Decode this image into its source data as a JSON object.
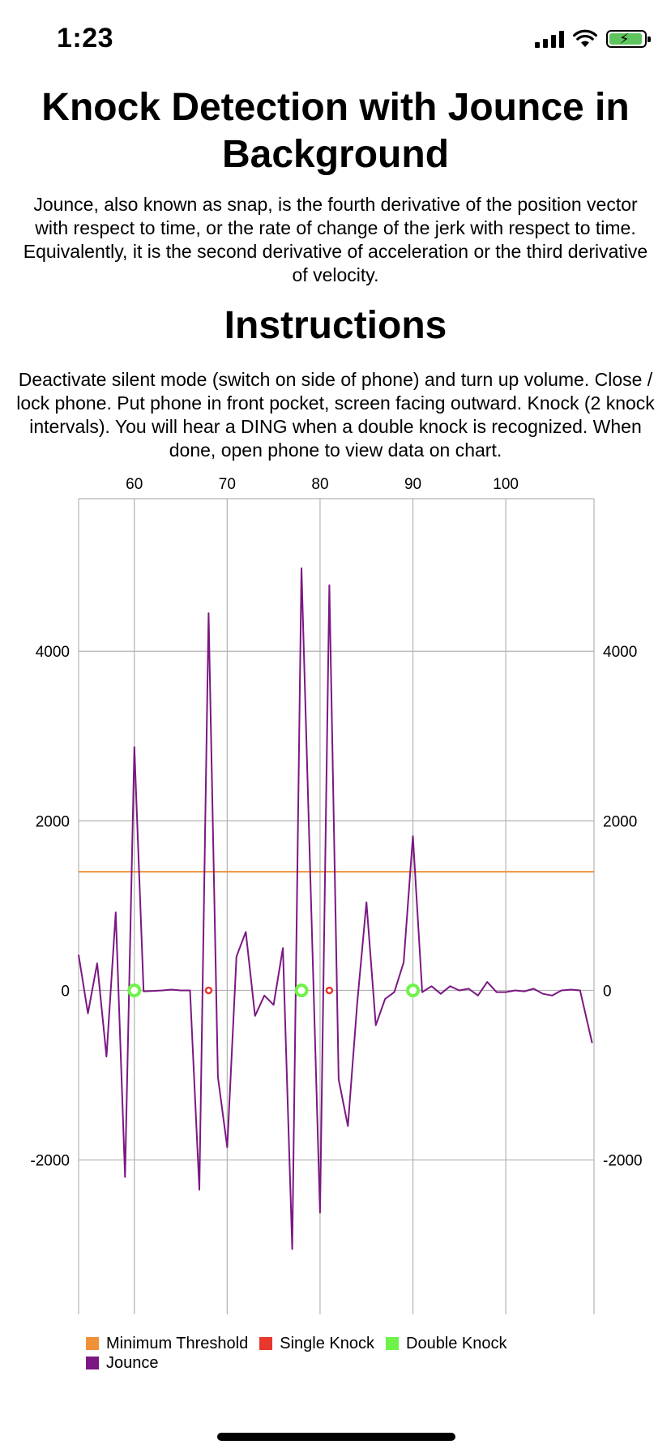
{
  "status_bar": {
    "time": "1:23",
    "icons": [
      "cellular-signal-icon",
      "wifi-icon",
      "battery-charging-icon"
    ],
    "battery_color": "#5ec45e"
  },
  "title": "Knock Detection with Jounce in Background",
  "description": "Jounce, also known as snap, is the fourth derivative of the position vector with respect to time, or the rate of change of the jerk with respect to time. Equivalently, it is the second derivative of acceleration or the third derivative of velocity.",
  "instructions": {
    "heading": "Instructions",
    "text": "Deactivate silent mode (switch on side of phone) and turn up volume. Close / lock phone. Put phone in front pocket, screen facing outward. Knock (2 knock intervals). You will hear a DING when a double knock is recognized. When done, open phone to view data on chart."
  },
  "chart_data": {
    "type": "line",
    "xlim": [
      54,
      109.5
    ],
    "ylim": [
      -3820,
      5800
    ],
    "x_ticks": [
      60,
      70,
      80,
      90,
      100
    ],
    "y_ticks": [
      -2000,
      0,
      2000,
      4000
    ],
    "grid": true,
    "legend_position": "bottom",
    "threshold": {
      "name": "Minimum Threshold",
      "value": 1400,
      "color": "#f0913a"
    },
    "series": [
      {
        "name": "Jounce",
        "color": "#7b1883",
        "points": [
          [
            54,
            420
          ],
          [
            55,
            -270
          ],
          [
            56,
            320
          ],
          [
            57,
            -780
          ],
          [
            58,
            920
          ],
          [
            59,
            -2200
          ],
          [
            60,
            2870
          ],
          [
            61,
            -10
          ],
          [
            62,
            -5
          ],
          [
            63,
            0
          ],
          [
            64,
            10
          ],
          [
            65,
            0
          ],
          [
            66,
            0
          ],
          [
            67,
            -2350
          ],
          [
            68,
            4450
          ],
          [
            69,
            -1020
          ],
          [
            70,
            -1850
          ],
          [
            71,
            400
          ],
          [
            72,
            690
          ],
          [
            73,
            -300
          ],
          [
            74,
            -60
          ],
          [
            75,
            -170
          ],
          [
            76,
            500
          ],
          [
            77,
            -3050
          ],
          [
            78,
            4980
          ],
          [
            79,
            1160
          ],
          [
            80,
            -2620
          ],
          [
            81,
            4780
          ],
          [
            82,
            -1050
          ],
          [
            83,
            -1600
          ],
          [
            84,
            -150
          ],
          [
            85,
            1040
          ],
          [
            86,
            -410
          ],
          [
            87,
            -100
          ],
          [
            88,
            -20
          ],
          [
            89,
            330
          ],
          [
            90,
            1820
          ],
          [
            91,
            -20
          ],
          [
            92,
            50
          ],
          [
            93,
            -40
          ],
          [
            94,
            50
          ],
          [
            95,
            0
          ],
          [
            96,
            20
          ],
          [
            97,
            -60
          ],
          [
            98,
            100
          ],
          [
            99,
            -20
          ],
          [
            100,
            -20
          ],
          [
            101,
            0
          ],
          [
            102,
            -10
          ],
          [
            103,
            20
          ],
          [
            104,
            -40
          ],
          [
            105,
            -60
          ],
          [
            106,
            0
          ],
          [
            107,
            10
          ],
          [
            108,
            0
          ],
          [
            109.3,
            -620
          ]
        ]
      },
      {
        "name": "Single Knock",
        "color": "#e8372c",
        "points": [
          [
            68,
            0
          ],
          [
            81,
            0
          ]
        ]
      },
      {
        "name": "Double Knock",
        "color": "#6ff24a",
        "points": [
          [
            60,
            0
          ],
          [
            78,
            0
          ],
          [
            90,
            0
          ]
        ]
      }
    ]
  },
  "legend": {
    "items": [
      {
        "label": "Minimum Threshold",
        "color": "#f0913a"
      },
      {
        "label": "Single Knock",
        "color": "#e8372c"
      },
      {
        "label": "Double Knock",
        "color": "#6ff24a"
      },
      {
        "label": "Jounce",
        "color": "#7b1883"
      }
    ]
  }
}
